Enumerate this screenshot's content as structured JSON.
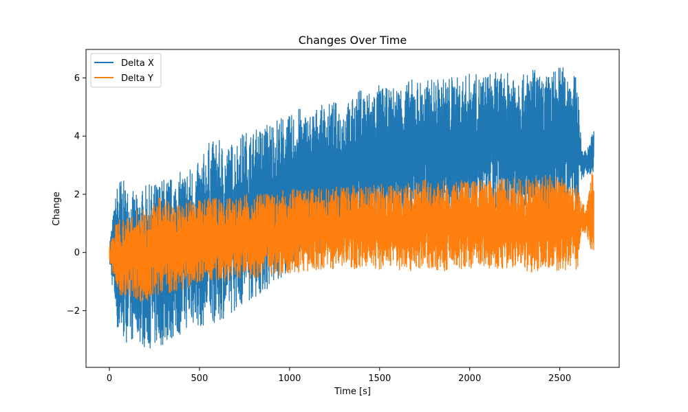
{
  "chart_data": {
    "type": "line",
    "title": "Changes Over Time",
    "xlabel": "Time [s]",
    "ylabel": "Change",
    "xlim": [
      -130,
      2830
    ],
    "ylim": [
      -3.95,
      6.98
    ],
    "x_ticks": [
      0,
      500,
      1000,
      1500,
      2000,
      2500
    ],
    "x_tick_labels": [
      "0",
      "500",
      "1000",
      "1500",
      "2000",
      "2500"
    ],
    "y_ticks": [
      -2,
      0,
      2,
      4,
      6
    ],
    "y_tick_labels": [
      "−2",
      "0",
      "2",
      "4",
      "6"
    ],
    "grid": false,
    "legend_position": "top-left",
    "series": [
      {
        "name": "Delta X",
        "color": "#1f77b4",
        "x": [
          0,
          50,
          100,
          150,
          200,
          250,
          300,
          350,
          400,
          450,
          500,
          550,
          600,
          650,
          700,
          750,
          800,
          850,
          900,
          950,
          1000,
          1050,
          1100,
          1150,
          1200,
          1250,
          1300,
          1350,
          1400,
          1450,
          1500,
          1550,
          1600,
          1650,
          1700,
          1750,
          1800,
          1850,
          1900,
          1950,
          2000,
          2050,
          2100,
          2150,
          2200,
          2250,
          2300,
          2350,
          2400,
          2450,
          2500,
          2550,
          2600,
          2620,
          2650,
          2690
        ],
        "upper": [
          0.35,
          2.7,
          2.3,
          2.0,
          2.3,
          2.4,
          2.6,
          2.6,
          2.8,
          3.0,
          3.1,
          3.8,
          3.9,
          3.7,
          3.9,
          4.2,
          4.2,
          4.4,
          4.6,
          4.7,
          4.7,
          5.0,
          4.8,
          5.0,
          5.1,
          5.2,
          5.1,
          5.3,
          5.7,
          5.6,
          5.8,
          5.6,
          5.8,
          5.9,
          6.0,
          5.9,
          6.0,
          6.0,
          6.1,
          6.0,
          6.2,
          6.1,
          6.2,
          6.2,
          6.1,
          6.5,
          6.1,
          6.4,
          6.0,
          6.2,
          6.45,
          6.3,
          6.0,
          3.6,
          3.5,
          4.3
        ],
        "lower": [
          -0.35,
          -3.0,
          -3.1,
          -3.0,
          -3.3,
          -3.3,
          -3.2,
          -3.0,
          -2.8,
          -2.5,
          -2.6,
          -2.5,
          -2.4,
          -2.2,
          -2.0,
          -1.8,
          -1.6,
          -1.4,
          -1.3,
          -0.9,
          -0.7,
          -0.5,
          -0.3,
          -0.1,
          0.1,
          0.3,
          0.4,
          0.4,
          0.6,
          0.6,
          0.6,
          0.8,
          0.7,
          0.8,
          0.9,
          0.9,
          1.1,
          1.0,
          1.1,
          1.1,
          1.2,
          1.3,
          1.2,
          1.3,
          1.3,
          1.4,
          1.3,
          1.4,
          1.3,
          1.5,
          1.3,
          1.4,
          1.4,
          2.5,
          2.7,
          2.6
        ]
      },
      {
        "name": "Delta Y",
        "color": "#ff7f0e",
        "x": [
          0,
          50,
          100,
          150,
          200,
          250,
          300,
          350,
          400,
          450,
          500,
          550,
          600,
          650,
          700,
          750,
          800,
          850,
          900,
          950,
          1000,
          1050,
          1100,
          1150,
          1200,
          1250,
          1300,
          1350,
          1400,
          1450,
          1500,
          1550,
          1600,
          1650,
          1700,
          1750,
          1800,
          1850,
          1900,
          1950,
          2000,
          2050,
          2100,
          2150,
          2200,
          2250,
          2300,
          2350,
          2400,
          2450,
          2500,
          2550,
          2600,
          2620,
          2650,
          2690
        ],
        "upper": [
          0.25,
          1.3,
          1.2,
          1.5,
          1.5,
          1.7,
          2.0,
          1.7,
          1.6,
          1.8,
          1.8,
          1.9,
          1.9,
          1.9,
          1.9,
          2.0,
          2.0,
          2.0,
          2.0,
          2.1,
          2.2,
          2.2,
          2.2,
          2.2,
          2.2,
          2.3,
          2.2,
          2.3,
          2.3,
          2.3,
          2.4,
          2.3,
          2.4,
          2.4,
          2.4,
          2.5,
          2.4,
          2.5,
          2.4,
          2.5,
          2.5,
          2.5,
          2.5,
          2.5,
          2.6,
          2.6,
          2.5,
          2.6,
          2.7,
          2.6,
          2.7,
          2.6,
          2.4,
          1.7,
          1.6,
          3.2
        ],
        "lower": [
          -0.3,
          -1.6,
          -1.5,
          -1.6,
          -1.8,
          -1.5,
          -1.4,
          -1.4,
          -1.3,
          -1.2,
          -1.1,
          -1.1,
          -1.0,
          -1.0,
          -0.9,
          -0.9,
          -0.9,
          -0.8,
          -0.8,
          -0.8,
          -0.7,
          -0.7,
          -0.7,
          -0.6,
          -0.6,
          -0.6,
          -0.5,
          -0.6,
          -0.5,
          -0.5,
          -0.6,
          -0.5,
          -0.6,
          -0.6,
          -0.7,
          -0.5,
          -0.6,
          -0.7,
          -0.6,
          -0.6,
          -0.6,
          -0.6,
          -0.6,
          -0.7,
          -0.6,
          -0.6,
          -0.6,
          -0.7,
          -0.6,
          -0.6,
          -0.7,
          -0.6,
          -0.6,
          0.7,
          0.6,
          -0.4
        ]
      }
    ]
  }
}
